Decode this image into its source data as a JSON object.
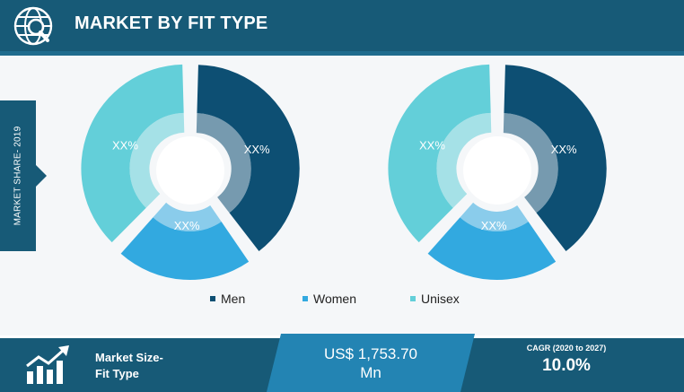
{
  "header": {
    "title": "MARKET BY FIT TYPE",
    "icon": "globe-search-icon"
  },
  "side_label": "MARKET SHARE- 2019",
  "chart_data": [
    {
      "type": "pie",
      "categories": [
        "Men",
        "Women",
        "Unisex"
      ],
      "values": [
        40,
        22,
        38
      ],
      "labels": [
        "XX%",
        "XX%",
        "XX%"
      ],
      "colors": [
        "#0d4f73",
        "#32a9e0",
        "#63cfd9"
      ]
    },
    {
      "type": "pie",
      "categories": [
        "Men",
        "Women",
        "Unisex"
      ],
      "values": [
        40,
        22,
        38
      ],
      "labels": [
        "XX%",
        "XX%",
        "XX%"
      ],
      "colors": [
        "#0d4f73",
        "#32a9e0",
        "#63cfd9"
      ]
    }
  ],
  "legend": [
    {
      "label": "Men",
      "color": "#0d4f73"
    },
    {
      "label": "Women",
      "color": "#32a9e0"
    },
    {
      "label": "Unisex",
      "color": "#63cfd9"
    }
  ],
  "footer": {
    "icon": "growth-chart-icon",
    "market_size_line1": "Market Size-",
    "market_size_line2": "Fit Type",
    "value_line1": "US$ 1,753.70",
    "value_line2": "Mn",
    "cagr_label": "CAGR (2020 to 2027)",
    "cagr_value": "10.0%"
  }
}
